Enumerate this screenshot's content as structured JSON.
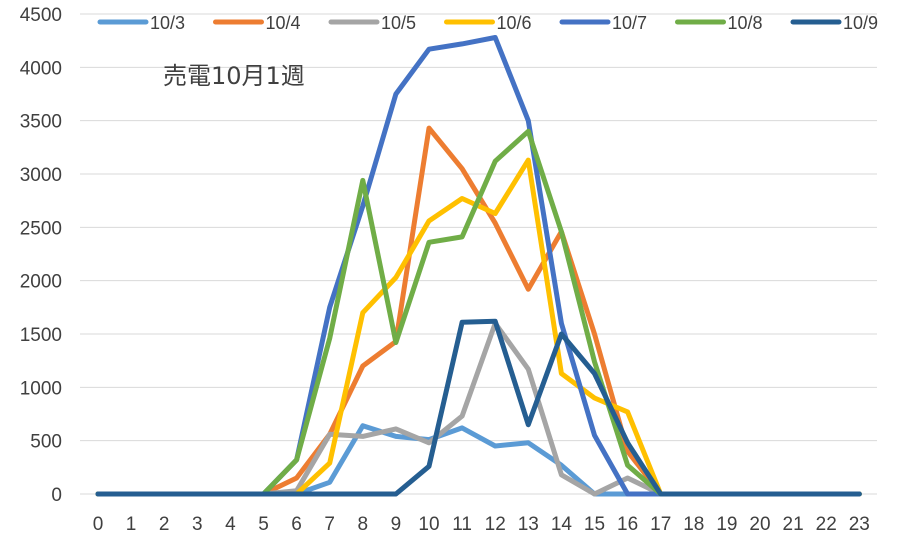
{
  "chart_data": {
    "type": "line",
    "title": "売電10月1週",
    "xlabel": "",
    "ylabel": "",
    "x": [
      0,
      1,
      2,
      3,
      4,
      5,
      6,
      7,
      8,
      9,
      10,
      11,
      12,
      13,
      14,
      15,
      16,
      17,
      18,
      19,
      20,
      21,
      22,
      23
    ],
    "ylim": [
      0,
      4500
    ],
    "yticks": [
      0,
      500,
      1000,
      1500,
      2000,
      2500,
      3000,
      3500,
      4000,
      4500
    ],
    "grid": true,
    "legend_position": "top",
    "series": [
      {
        "name": "10/3",
        "color": "#5B9BD5",
        "values": [
          0,
          0,
          0,
          0,
          0,
          0,
          0,
          110,
          640,
          540,
          510,
          620,
          450,
          480,
          270,
          0,
          0,
          0,
          0,
          0,
          0,
          0,
          0,
          0
        ]
      },
      {
        "name": "10/4",
        "color": "#ED7D31",
        "values": [
          0,
          0,
          0,
          0,
          0,
          0,
          150,
          560,
          1200,
          1430,
          3430,
          3050,
          2540,
          1920,
          2460,
          1500,
          400,
          0,
          0,
          0,
          0,
          0,
          0,
          0
        ]
      },
      {
        "name": "10/5",
        "color": "#A5A5A5",
        "values": [
          0,
          0,
          0,
          0,
          0,
          0,
          30,
          560,
          540,
          610,
          480,
          730,
          1600,
          1170,
          180,
          0,
          150,
          0,
          0,
          0,
          0,
          0,
          0,
          0
        ]
      },
      {
        "name": "10/6",
        "color": "#FFC000",
        "values": [
          0,
          0,
          0,
          0,
          0,
          0,
          0,
          290,
          1700,
          2030,
          2560,
          2770,
          2630,
          3130,
          1130,
          900,
          770,
          0,
          0,
          0,
          0,
          0,
          0,
          0
        ]
      },
      {
        "name": "10/7",
        "color": "#4472C4",
        "values": [
          0,
          0,
          0,
          0,
          0,
          0,
          320,
          1750,
          2700,
          3750,
          4170,
          4220,
          4280,
          3500,
          1600,
          550,
          0,
          0,
          0,
          0,
          0,
          0,
          0,
          0
        ]
      },
      {
        "name": "10/8",
        "color": "#70AD47",
        "values": [
          0,
          0,
          0,
          0,
          0,
          0,
          320,
          1460,
          2940,
          1420,
          2360,
          2410,
          3120,
          3400,
          2460,
          1240,
          270,
          0,
          0,
          0,
          0,
          0,
          0,
          0
        ]
      },
      {
        "name": "10/9",
        "color": "#255E91",
        "values": [
          0,
          0,
          0,
          0,
          0,
          0,
          0,
          0,
          0,
          0,
          260,
          1610,
          1620,
          650,
          1500,
          1130,
          480,
          0,
          0,
          0,
          0,
          0,
          0,
          0
        ]
      }
    ]
  }
}
